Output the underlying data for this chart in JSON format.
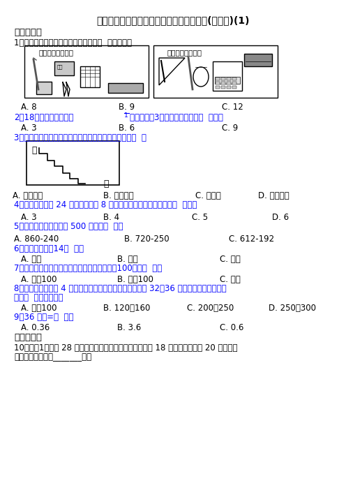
{
  "title": "【压轴卷】小学三年级数学上期末一模试卷(附答案)(1)",
  "bg_color": "#ffffff",
  "text_color": "#000000",
  "blue_color": "#0000ff",
  "section1": "一、选择题",
  "q1": "1．观察下图，可知商店两天一共进了（  ）种文具。",
  "q1_opts": [
    "A. 8",
    "B. 9",
    "C. 12"
  ],
  "q2a": "2．18个苹果，拿出它的",
  "q2b": "，平均分给3个小朋友，每人得（  ）个。",
  "q2_opts": [
    "A. 3",
    "B. 6",
    "C. 9"
  ],
  "q3": "3．如图中长方形分成两个部分，哪个部分的周长长？（  ）",
  "q3_opts": [
    "A. 甲周长长",
    "B. 乙周长长",
    "C. 一样长",
    "D. 无法判断"
  ],
  "q4": "4．学校舞蹈队有 24 人，书法队有 8 人，舞蹈队的人数是书法队的（  ）倍。",
  "q4_opts": [
    "A. 3",
    "B. 4",
    "C. 5",
    "D. 6"
  ],
  "q5": "5．下列算式中，得数比 500 大的是（  ）。",
  "q5_opts": [
    "A. 860-240",
    "B. 720-250",
    "C. 612-192"
  ],
  "q6": "6．一支钢笔长约14（  ）。",
  "q6_opts": [
    "A. 毫米",
    "B. 厘米",
    "C. 分米"
  ],
  "q7": "7．在加法中，一个加数不变，另一个加数增加100，和（  ）。",
  "q7_opts": [
    "A. 增加100",
    "B. 减少100",
    "C. 不变"
  ],
  "q8a": "8．王老师每年要给 4 个班上体育课，每个班学生人数都在 32～36 之间，王老师每天大约",
  "q8b": "要给（  ）学生上课。",
  "q8_opts": [
    "A. 少于100",
    "B. 120～160",
    "C. 200～250",
    "D. 250～300"
  ],
  "q9": "9．36 分钟=（  ）时",
  "q9_opts": [
    "A. 0.36",
    "B. 3.6",
    "C. 0.6"
  ],
  "section2": "二、填空题",
  "q10a": "10．三（1）班有 28 人参加了歌舞兴趣小组，会唱歌的有 18 人，会跳舞的有 20 人，既会",
  "q10b": "唱歌又会跳舞的有_______人。"
}
